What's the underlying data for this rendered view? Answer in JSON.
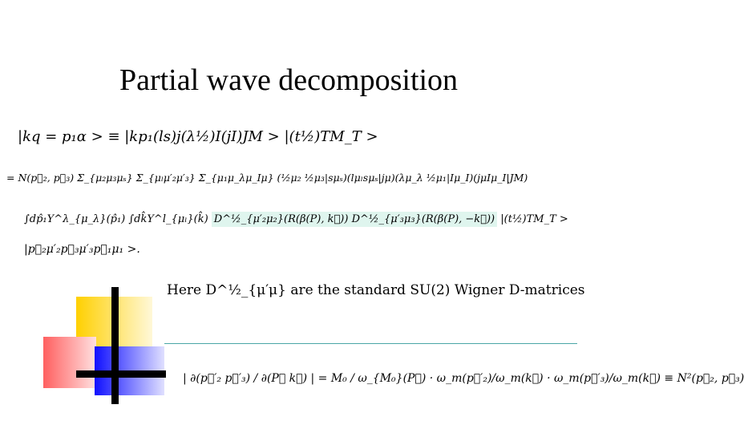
{
  "title": "Partial wave decomposition",
  "equations": {
    "line1": "|kq = p₁α > ≡ |kp₁(ls)j(λ½)I(jI)JM > |(t½)TM_T >",
    "line2": "= N(p⃗₂, p⃗₃) Σ_{μ₂μ₃μₛ} Σ_{μₗμ′₂μ′₃} Σ_{μ₁μ_λμ_Iμ} (½μ₂ ½μ₃|sμₛ)(lμₗsμₛ|jμ)(λμ_λ ½μ₁|Iμ_I)(jμIμ_I|JM)",
    "line3_start": "∫dp̂₁Y^λ_{μ_λ}(p̂₁) ∫dk̂Y^l_{μₗ}(k̂)",
    "line3_highlight": "D^½_{μ′₂μ₂}(R(β(P), k⃗)) D^½_{μ′₃μ₃}(R(β(P), −k⃗))",
    "line3_end": "|(t½)TM_T >",
    "line4": "|p⃗₂μ′₂p⃗₃μ′₃p⃗₁μ₁ >."
  },
  "note": "Here D^½_{μ′μ} are the standard SU(2) Wigner D-matrices",
  "jacobian": "| ∂(p⃗′₂ p⃗′₃) / ∂(P⃗ k⃗) | = M₀ / ω_{M₀}(P⃗) · ω_m(p⃗′₂)/ω_m(k⃗) · ω_m(p⃗′₃)/ω_m(k⃗) ≡ N²(p⃗₂, p⃗₃)"
}
